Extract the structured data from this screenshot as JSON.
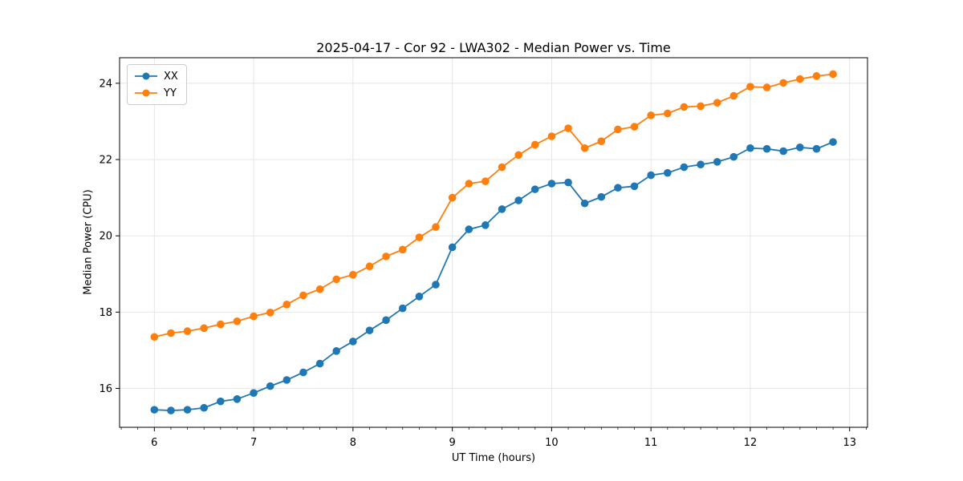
{
  "chart_data": {
    "type": "line",
    "title": "2025-04-17 - Cor 92 - LWA302 - Median Power vs. Time",
    "xlabel": "UT Time (hours)",
    "ylabel": "Median Power (CPU)",
    "grid": true,
    "legend_position": "upper left",
    "marker": "circle",
    "xlim": [
      5.65,
      13.18
    ],
    "ylim": [
      14.98,
      24.67
    ],
    "xticks": [
      6,
      7,
      8,
      9,
      10,
      11,
      12,
      13
    ],
    "yticks": [
      16,
      18,
      20,
      22,
      24
    ],
    "x_minor_tick_step": 0.16667,
    "x": [
      6.0,
      6.167,
      6.333,
      6.5,
      6.667,
      6.833,
      7.0,
      7.167,
      7.333,
      7.5,
      7.667,
      7.833,
      8.0,
      8.167,
      8.333,
      8.5,
      8.667,
      8.833,
      9.0,
      9.167,
      9.333,
      9.5,
      9.667,
      9.833,
      10.0,
      10.167,
      10.333,
      10.5,
      10.667,
      10.833,
      11.0,
      11.167,
      11.333,
      11.5,
      11.667,
      11.833,
      12.0,
      12.167,
      12.333,
      12.5,
      12.667,
      12.833
    ],
    "series": [
      {
        "name": "XX",
        "color": "#1f77b4",
        "values": [
          15.44,
          15.42,
          15.44,
          15.49,
          15.66,
          15.72,
          15.88,
          16.06,
          16.22,
          16.42,
          16.65,
          16.98,
          17.23,
          17.52,
          17.79,
          18.1,
          18.41,
          18.72,
          19.7,
          20.17,
          20.28,
          20.7,
          20.93,
          21.22,
          21.37,
          21.4,
          20.85,
          21.02,
          21.26,
          21.3,
          21.59,
          21.65,
          21.8,
          21.87,
          21.94,
          22.07,
          22.3,
          22.28,
          22.22,
          22.32,
          22.28,
          22.46
        ]
      },
      {
        "name": "YY",
        "color": "#ff7f0e",
        "values": [
          17.35,
          17.45,
          17.5,
          17.58,
          17.68,
          17.76,
          17.89,
          17.99,
          18.2,
          18.44,
          18.6,
          18.86,
          18.98,
          19.2,
          19.46,
          19.64,
          19.96,
          20.23,
          21.0,
          21.37,
          21.43,
          21.8,
          22.12,
          22.39,
          22.61,
          22.82,
          22.3,
          22.48,
          22.79,
          22.86,
          23.16,
          23.21,
          23.38,
          23.4,
          23.49,
          23.67,
          23.91,
          23.89,
          24.01,
          24.11,
          24.19,
          24.24
        ]
      }
    ]
  }
}
